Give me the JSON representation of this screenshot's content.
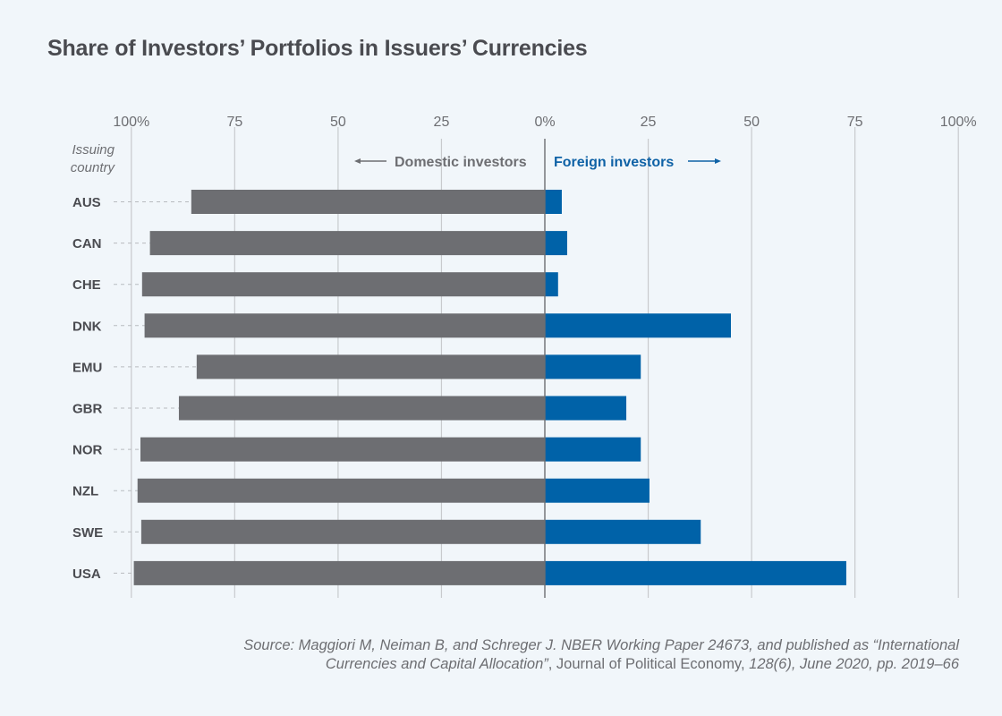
{
  "chart_data": {
    "type": "bar",
    "orientation": "horizontal-diverging",
    "title": "Share of Investors’ Portfolios in Issuers’ Currencies",
    "ylabel": "Issuing country",
    "xlabel": "",
    "categories": [
      "AUS",
      "CAN",
      "CHE",
      "DNK",
      "EMU",
      "GBR",
      "NOR",
      "NZL",
      "SWE",
      "USA"
    ],
    "series": [
      {
        "name": "Domestic investors",
        "direction": "left",
        "color": "#6d6e72",
        "values": [
          85.5,
          95.5,
          97.4,
          96.8,
          84.2,
          88.5,
          97.8,
          98.5,
          97.6,
          99.4
        ]
      },
      {
        "name": "Foreign investors",
        "direction": "right",
        "color": "#0062a8",
        "values": [
          4.1,
          5.4,
          3.2,
          45.0,
          23.2,
          19.7,
          23.2,
          25.3,
          37.7,
          72.9
        ]
      }
    ],
    "xlim": [
      -100,
      100
    ],
    "x_ticks": [
      {
        "value": -100,
        "label": "100%"
      },
      {
        "value": -75,
        "label": "75"
      },
      {
        "value": -50,
        "label": "50"
      },
      {
        "value": -25,
        "label": "25"
      },
      {
        "value": 0,
        "label": "0%"
      },
      {
        "value": 25,
        "label": "25"
      },
      {
        "value": 50,
        "label": "50"
      },
      {
        "value": 75,
        "label": "75"
      },
      {
        "value": 100,
        "label": "100%"
      }
    ],
    "grid": true,
    "legend": {
      "domestic": "Domestic investors",
      "foreign": "Foreign investors",
      "placement": "top-center"
    }
  },
  "ylabel_lines": [
    "Issuing",
    "country"
  ],
  "source": {
    "line1_italic": "Source: Maggiori M, Neiman B, and Schreger J. NBER Working Paper 24673, and published as “International",
    "line2_italic_a": "Currencies and Capital Allocation”",
    "line2_plain": ", Journal of Political Economy, ",
    "line2_italic_b": "128(6), June 2020, pp. 2019–66"
  },
  "colors": {
    "domestic": "#6d6e72",
    "foreign": "#0062a8",
    "grid": "#c8cacd",
    "axis": "#6d6e72",
    "background": "#f1f6fa"
  }
}
